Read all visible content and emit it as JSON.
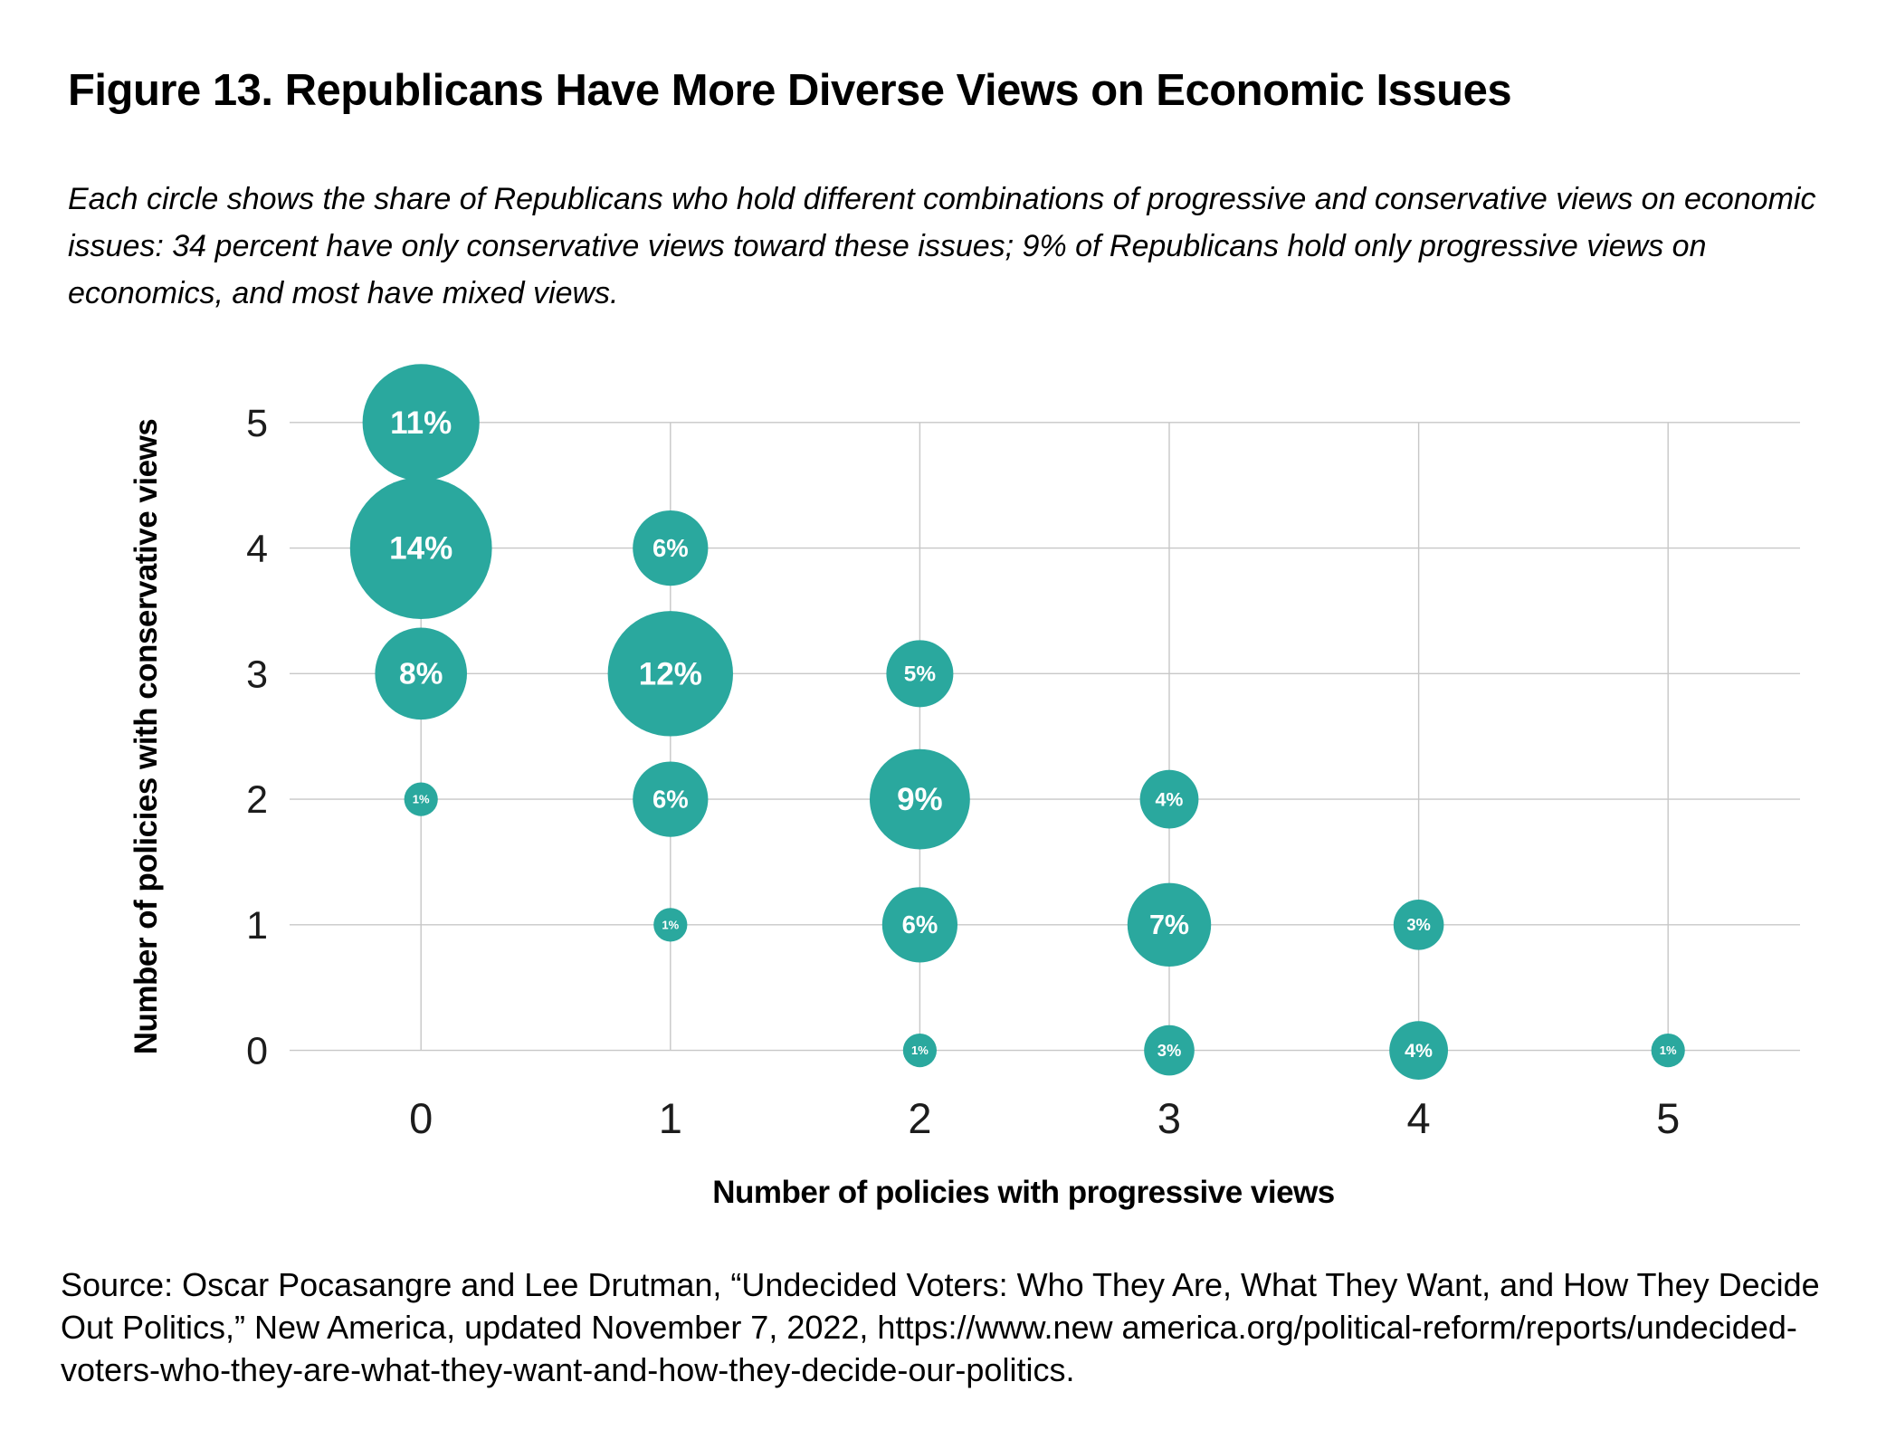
{
  "title": "Figure 13. Republicans Have More Diverse Views on Economic Issues",
  "subtitle_lines": [
    "Each circle shows the share of Republicans who hold different combinations of progressive and conservative views on economic",
    "issues: 34 percent have only conservative views toward these issues; 9% of Republicans hold only progressive views on",
    "economics, and most have mixed views."
  ],
  "source_lines": [
    "Source: Oscar Pocasangre and Lee Drutman, “Undecided Voters: Who They Are, What They Want, and How They Decide",
    "Out Politics,” New America, updated November 7, 2022, https://www.new america.org/political-reform/reports/undecided-",
    "voters-who-they-are-what-they-want-and-how-they-decide-our-politics."
  ],
  "chart_data": {
    "type": "scatter",
    "variant": "bubble",
    "xlabel": "Number of policies with progressive views",
    "ylabel": "Number of policies with conservative views",
    "x_ticks": [
      "0",
      "1",
      "2",
      "3",
      "4",
      "5"
    ],
    "y_ticks": [
      "0",
      "1",
      "2",
      "3",
      "4",
      "5"
    ],
    "xlim": [
      -0.5,
      5.5
    ],
    "ylim": [
      0,
      5
    ],
    "grid": true,
    "colors": {
      "bubble": "#2aa89e",
      "bubble_label": "#ffffff",
      "gridline": "#c7c7c7",
      "tick_text": "#1c1c1c"
    },
    "points": [
      {
        "x": 0,
        "y": 5,
        "value": 11,
        "label": "11%"
      },
      {
        "x": 0,
        "y": 4,
        "value": 14,
        "label": "14%"
      },
      {
        "x": 0,
        "y": 3,
        "value": 8,
        "label": "8%"
      },
      {
        "x": 0,
        "y": 2,
        "value": 1,
        "label": "1%"
      },
      {
        "x": 1,
        "y": 4,
        "value": 6,
        "label": "6%"
      },
      {
        "x": 1,
        "y": 3,
        "value": 12,
        "label": "12%"
      },
      {
        "x": 1,
        "y": 2,
        "value": 6,
        "label": "6%"
      },
      {
        "x": 1,
        "y": 1,
        "value": 1,
        "label": "1%"
      },
      {
        "x": 2,
        "y": 3,
        "value": 5,
        "label": "5%"
      },
      {
        "x": 2,
        "y": 2,
        "value": 9,
        "label": "9%"
      },
      {
        "x": 2,
        "y": 1,
        "value": 6,
        "label": "6%"
      },
      {
        "x": 2,
        "y": 0,
        "value": 1,
        "label": "1%"
      },
      {
        "x": 3,
        "y": 2,
        "value": 4,
        "label": "4%"
      },
      {
        "x": 3,
        "y": 1,
        "value": 7,
        "label": "7%"
      },
      {
        "x": 3,
        "y": 0,
        "value": 3,
        "label": "3%"
      },
      {
        "x": 4,
        "y": 1,
        "value": 3,
        "label": "3%"
      },
      {
        "x": 4,
        "y": 0,
        "value": 4,
        "label": "4%"
      },
      {
        "x": 5,
        "y": 0,
        "value": 1,
        "label": "1%"
      }
    ]
  }
}
